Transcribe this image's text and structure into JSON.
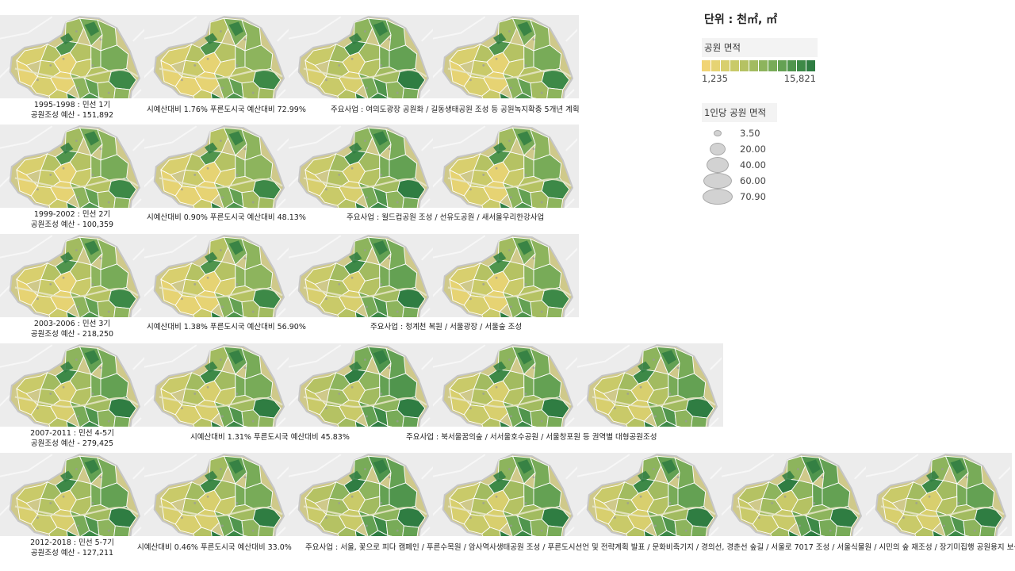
{
  "legend": {
    "unit_title": "단위 : 천㎡, ㎡",
    "area_title": "공원 면적",
    "area_min": "1,235",
    "area_max": "15,821",
    "gradient_colors": [
      "#f1d475",
      "#e6d373",
      "#d8cf6e",
      "#c9ca69",
      "#b5c263",
      "#a2bb60",
      "#8db45d",
      "#78ab58",
      "#64a153",
      "#50954d",
      "#3d8947",
      "#2f7d42"
    ],
    "per_capita_title": "1인당 공원 면적",
    "per_capita_values": [
      "3.50",
      "20.00",
      "40.00",
      "60.00",
      "70.90"
    ]
  },
  "rows": [
    {
      "period": "1995-1998 : 민선 1기",
      "budget": "공원조성 예산 - 151,892",
      "ratio": "시예산대비 1.76%  푸른도시국 예산대비 72.99%",
      "projects": "주요사업 : 여의도광장 공원화 / 길동생태공원 조성 등 공원녹지확충 5개년 계획",
      "map_count": 4
    },
    {
      "period": "1999-2002 : 민선 2기",
      "budget": "공원조성 예산 - 100,359",
      "ratio": "시예산대비 0.90%  푸른도시국 예산대비 48.13%",
      "projects": "주요사업 : 월드컵공원 조성 / 선유도공원 / 새서울우리한강사업",
      "map_count": 4
    },
    {
      "period": "2003-2006 : 민선 3기",
      "budget": "공원조성 예산 - 218,250",
      "ratio": "시예산대비 1.38%  푸른도시국 예산대비 56.90%",
      "projects": "주요사업 : 청계천 복원 / 서울광장 / 서울숲 조성",
      "map_count": 4
    },
    {
      "period": "2007-2011 : 민선 4-5기",
      "budget": "공원조성 예산 - 279,425",
      "ratio": "시예산대비 1.31%  푸른도시국 예산대비 45.83%",
      "projects": "주요사업 : 북서울꿈의숲 / 서서울호수공원 / 서울창포원 등 권역별 대형공원조성",
      "map_count": 5
    },
    {
      "period": "2012-2018 : 민선 5-7기",
      "budget": "공원조성 예산 - 127,211",
      "ratio": "시예산대비 0.46%  푸른도시국 예산대비 33.0%",
      "projects": "주요사업 : 서울, 꽃으로 피다 캠페인 / 푸른수목원 / 암사역사생태공원 조성 / 푸른도시선언 및 전략계획 발표 / 문화비축기지 / 경의선, 경춘선 숲길 / 서울로 7017 조성 / 서울식물원 / 시민의 숲 재조성 / 장기미집행 공원용지 보상",
      "map_count": 7
    }
  ]
}
